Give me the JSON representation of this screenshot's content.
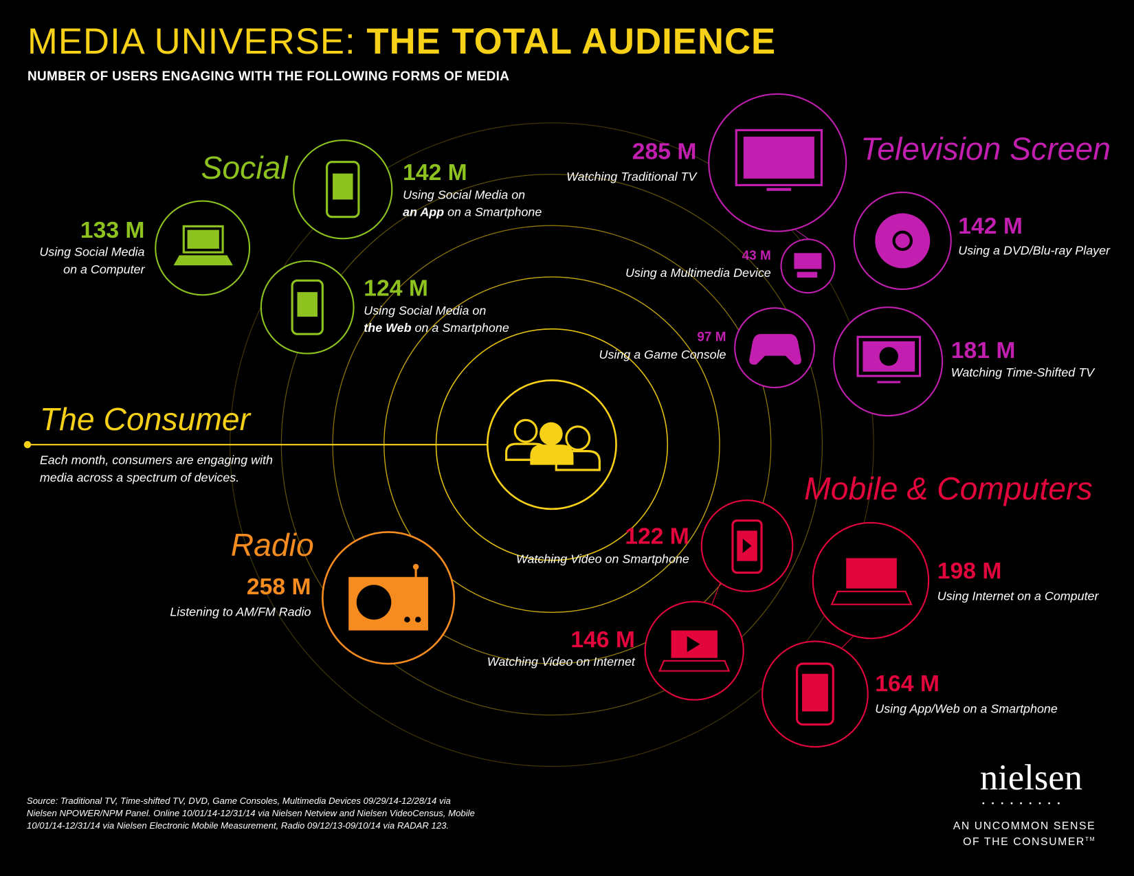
{
  "title": {
    "light": "MEDIA UNIVERSE:",
    "bold": "THE TOTAL AUDIENCE"
  },
  "subtitle": "NUMBER OF USERS ENGAGING WITH THE FOLLOWING FORMS OF MEDIA",
  "consumer": {
    "label": "The Consumer",
    "desc_line1": "Each month, consumers are engaging with",
    "desc_line2": "media across a spectrum of devices.",
    "icon": "people-icon"
  },
  "colors": {
    "social": "#8dc21f",
    "television": "#c21fb1",
    "mobile": "#e3063d",
    "radio": "#f68b1f",
    "consumer": "#f7d117"
  },
  "social": {
    "label": "Social",
    "items": [
      {
        "value": "142 M",
        "line1": "Using Social Media on",
        "line2_bold": "an App",
        "line2_rest": " on a Smartphone",
        "icon": "smartphone-chat-icon"
      },
      {
        "value": "133 M",
        "line1": "Using Social Media",
        "line2": "on a Computer",
        "icon": "laptop-chat-icon"
      },
      {
        "value": "124 M",
        "line1": "Using Social Media on",
        "line2_bold": "the Web",
        "line2_rest": " on a Smartphone",
        "icon": "smartphone-chat-icon"
      }
    ]
  },
  "television": {
    "label": "Television Screen",
    "items": [
      {
        "value": "285 M",
        "desc": "Watching Traditional TV",
        "icon": "tv-icon"
      },
      {
        "value": "142 M",
        "desc": "Using a DVD/Blu-ray Player",
        "icon": "disc-icon"
      },
      {
        "value": "43 M",
        "desc": "Using a Multimedia Device",
        "icon": "multimedia-device-icon"
      },
      {
        "value": "97 M",
        "desc": "Using a Game Console",
        "icon": "gamepad-icon"
      },
      {
        "value": "181 M",
        "desc": "Watching Time-Shifted TV",
        "icon": "tv-clock-icon"
      }
    ]
  },
  "mobile": {
    "label": "Mobile & Computers",
    "items": [
      {
        "value": "122 M",
        "desc": "Watching Video on Smartphone",
        "icon": "smartphone-play-icon"
      },
      {
        "value": "146 M",
        "desc": "Watching Video on Internet",
        "icon": "laptop-play-icon"
      },
      {
        "value": "198 M",
        "desc": "Using Internet on a Computer",
        "icon": "laptop-icon"
      },
      {
        "value": "164 M",
        "desc": "Using App/Web on a Smartphone",
        "icon": "smartphone-icon"
      }
    ]
  },
  "radio": {
    "label": "Radio",
    "items": [
      {
        "value": "258 M",
        "desc": "Listening to AM/FM Radio",
        "icon": "radio-icon"
      }
    ]
  },
  "source": "Source: Traditional TV, Time-shifted TV, DVD, Game Consoles, Multimedia Devices 09/29/14-12/28/14 via Nielsen NPOWER/NPM Panel. Online 10/01/14-12/31/14 via Nielsen Netview and Nielsen VideoCensus, Mobile 10/01/14-12/31/14 via Nielsen Electronic Mobile Measurement, Radio 09/12/13-09/10/14 via RADAR 123.",
  "brand": {
    "logo": "nielsen",
    "dots": "•••••••••",
    "tagline1": "AN UNCOMMON SENSE",
    "tagline2": "OF THE CONSUMER",
    "tm": "TM"
  }
}
